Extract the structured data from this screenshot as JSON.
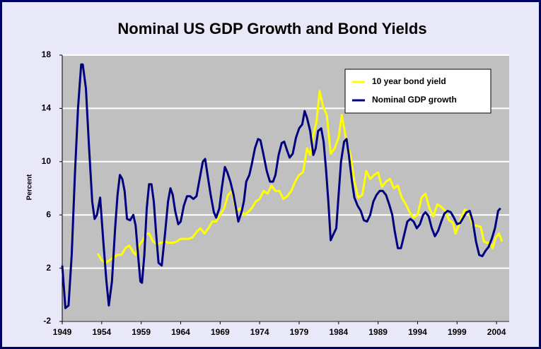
{
  "chart_data": {
    "type": "line",
    "title": "Nominal US GDP Growth and Bond Yields",
    "ylabel": "Percent",
    "xlim": [
      1949,
      2005.6
    ],
    "xticks": [
      1949,
      1954,
      1959,
      1964,
      1969,
      1974,
      1979,
      1984,
      1989,
      1994,
      1999,
      2004
    ],
    "ylim": [
      -2,
      18
    ],
    "yticks": [
      -2,
      2,
      6,
      10,
      14,
      18
    ],
    "grid": true,
    "legend": "upper right",
    "series": [
      {
        "name": "10 year bond yield",
        "color": "#ffff00",
        "x": [
          1953.5,
          1954.0,
          1954.5,
          1955.0,
          1955.5,
          1956.0,
          1956.5,
          1957.0,
          1957.5,
          1958.0,
          1958.3,
          1958.7,
          1959.2,
          1959.7,
          1960.0,
          1960.5,
          1961.0,
          1961.5,
          1962.0,
          1962.5,
          1963.0,
          1963.5,
          1964.0,
          1964.5,
          1965.0,
          1965.5,
          1966.0,
          1966.5,
          1967.0,
          1967.5,
          1968.0,
          1968.5,
          1969.0,
          1969.5,
          1970.0,
          1970.5,
          1971.0,
          1971.5,
          1972.0,
          1972.5,
          1973.0,
          1973.5,
          1974.0,
          1974.5,
          1975.0,
          1975.5,
          1976.0,
          1976.5,
          1977.0,
          1977.5,
          1978.0,
          1978.5,
          1979.0,
          1979.5,
          1980.0,
          1980.4,
          1980.8,
          1981.2,
          1981.6,
          1982.0,
          1982.5,
          1983.0,
          1983.5,
          1984.0,
          1984.4,
          1985.0,
          1985.5,
          1986.0,
          1986.5,
          1987.0,
          1987.5,
          1988.0,
          1988.5,
          1989.0,
          1989.5,
          1990.0,
          1990.5,
          1991.0,
          1991.5,
          1992.0,
          1992.5,
          1993.0,
          1993.5,
          1994.0,
          1994.5,
          1995.0,
          1995.5,
          1996.0,
          1996.5,
          1997.0,
          1997.5,
          1998.0,
          1998.5,
          1998.8,
          1999.2,
          1999.6,
          2000.0,
          2000.5,
          2001.0,
          2001.5,
          2002.0,
          2002.4,
          2002.8,
          2003.2,
          2003.5,
          2003.9,
          2004.3,
          2004.7
        ],
        "values": [
          3.1,
          2.6,
          2.4,
          2.6,
          2.8,
          3.0,
          3.0,
          3.5,
          3.7,
          3.2,
          3.0,
          3.7,
          4.1,
          4.6,
          4.6,
          4.0,
          3.8,
          3.9,
          4.0,
          3.9,
          3.9,
          4.0,
          4.2,
          4.2,
          4.2,
          4.3,
          4.7,
          5.0,
          4.6,
          5.0,
          5.5,
          5.5,
          6.0,
          6.5,
          7.5,
          7.8,
          6.3,
          6.5,
          6.0,
          6.2,
          6.5,
          7.0,
          7.2,
          7.8,
          7.6,
          8.2,
          7.8,
          7.8,
          7.2,
          7.4,
          7.8,
          8.5,
          9.0,
          9.2,
          11.0,
          10.5,
          12.0,
          13.0,
          15.3,
          14.2,
          13.5,
          10.6,
          11.0,
          11.8,
          13.5,
          11.5,
          10.5,
          8.5,
          7.3,
          7.5,
          9.3,
          8.7,
          9.0,
          9.2,
          8.1,
          8.5,
          8.7,
          8.0,
          8.2,
          7.3,
          6.8,
          6.2,
          5.8,
          6.0,
          7.3,
          7.6,
          6.5,
          5.9,
          6.8,
          6.6,
          6.3,
          5.6,
          5.4,
          4.6,
          5.2,
          5.9,
          6.4,
          6.2,
          5.2,
          5.2,
          5.1,
          4.0,
          3.9,
          3.9,
          3.5,
          4.3,
          4.6,
          4.0
        ]
      },
      {
        "name": "Nominal GDP growth",
        "color": "#000080",
        "x": [
          1949.0,
          1949.4,
          1949.8,
          1950.2,
          1950.6,
          1951.0,
          1951.4,
          1951.6,
          1952.0,
          1952.4,
          1952.8,
          1953.1,
          1953.4,
          1953.8,
          1954.2,
          1954.6,
          1954.9,
          1955.3,
          1955.7,
          1956.0,
          1956.3,
          1956.6,
          1956.9,
          1957.2,
          1957.6,
          1958.0,
          1958.3,
          1958.6,
          1958.9,
          1959.1,
          1959.4,
          1959.7,
          1960.0,
          1960.3,
          1960.6,
          1960.9,
          1961.2,
          1961.6,
          1962.0,
          1962.4,
          1962.7,
          1963.0,
          1963.3,
          1963.7,
          1964.0,
          1964.4,
          1964.8,
          1965.2,
          1965.6,
          1966.0,
          1966.4,
          1966.8,
          1967.1,
          1967.4,
          1967.8,
          1968.2,
          1968.5,
          1968.9,
          1969.2,
          1969.6,
          1969.9,
          1970.3,
          1970.7,
          1971.0,
          1971.3,
          1971.7,
          1972.0,
          1972.3,
          1972.7,
          1973.0,
          1973.4,
          1973.8,
          1974.1,
          1974.5,
          1974.9,
          1975.3,
          1975.7,
          1976.0,
          1976.4,
          1976.8,
          1977.1,
          1977.5,
          1977.8,
          1978.2,
          1978.6,
          1979.0,
          1979.4,
          1979.7,
          1980.0,
          1980.4,
          1980.8,
          1981.1,
          1981.4,
          1981.8,
          1982.1,
          1982.4,
          1982.7,
          1983.0,
          1983.3,
          1983.7,
          1984.0,
          1984.3,
          1984.7,
          1985.0,
          1985.3,
          1985.7,
          1986.0,
          1986.4,
          1986.8,
          1987.2,
          1987.6,
          1988.0,
          1988.4,
          1988.8,
          1989.2,
          1989.6,
          1990.0,
          1990.4,
          1990.8,
          1991.1,
          1991.5,
          1991.9,
          1992.3,
          1992.7,
          1993.1,
          1993.5,
          1993.9,
          1994.3,
          1994.7,
          1995.0,
          1995.4,
          1995.8,
          1996.2,
          1996.6,
          1997.0,
          1997.4,
          1997.8,
          1998.2,
          1998.6,
          1999.0,
          1999.4,
          1999.8,
          2000.2,
          2000.6,
          2001.0,
          2001.4,
          2001.8,
          2002.2,
          2002.6,
          2003.0,
          2003.4,
          2003.8,
          2004.2,
          2004.5
        ],
        "values": [
          2.2,
          -1.0,
          -0.8,
          3.0,
          9.0,
          14.0,
          17.3,
          17.3,
          15.5,
          11.0,
          7.0,
          5.7,
          6.0,
          7.3,
          4.0,
          1.0,
          -0.8,
          1.0,
          5.0,
          7.5,
          9.0,
          8.7,
          7.8,
          5.7,
          5.6,
          6.0,
          5.2,
          3.0,
          1.0,
          0.9,
          3.0,
          6.5,
          8.3,
          8.3,
          7.0,
          4.5,
          2.4,
          2.2,
          4.5,
          7.0,
          8.0,
          7.5,
          6.3,
          5.3,
          5.5,
          6.7,
          7.4,
          7.4,
          7.2,
          7.4,
          8.7,
          10.0,
          10.2,
          9.0,
          7.5,
          6.2,
          5.8,
          6.5,
          8.0,
          9.6,
          9.2,
          8.5,
          7.5,
          6.5,
          5.5,
          6.2,
          7.0,
          8.5,
          9.0,
          9.8,
          11.0,
          11.7,
          11.6,
          10.5,
          9.3,
          8.5,
          8.5,
          9.0,
          10.5,
          11.4,
          11.5,
          10.8,
          10.3,
          10.6,
          11.8,
          12.5,
          12.8,
          13.8,
          13.3,
          12.3,
          10.5,
          11.0,
          12.3,
          12.5,
          11.5,
          9.5,
          7.0,
          4.1,
          4.5,
          5.0,
          7.5,
          10.0,
          11.5,
          11.7,
          10.5,
          8.5,
          7.3,
          6.7,
          6.3,
          5.6,
          5.5,
          6.0,
          7.0,
          7.5,
          7.8,
          7.8,
          7.5,
          6.8,
          6.0,
          4.8,
          3.5,
          3.5,
          4.5,
          5.5,
          5.7,
          5.5,
          5.0,
          5.3,
          6.0,
          6.2,
          5.9,
          5.0,
          4.4,
          4.8,
          5.5,
          6.1,
          6.3,
          6.2,
          5.8,
          5.3,
          5.4,
          5.8,
          6.2,
          6.3,
          5.5,
          4.0,
          3.0,
          2.9,
          3.3,
          3.6,
          4.2,
          5.0,
          6.3,
          6.5
        ]
      }
    ]
  }
}
